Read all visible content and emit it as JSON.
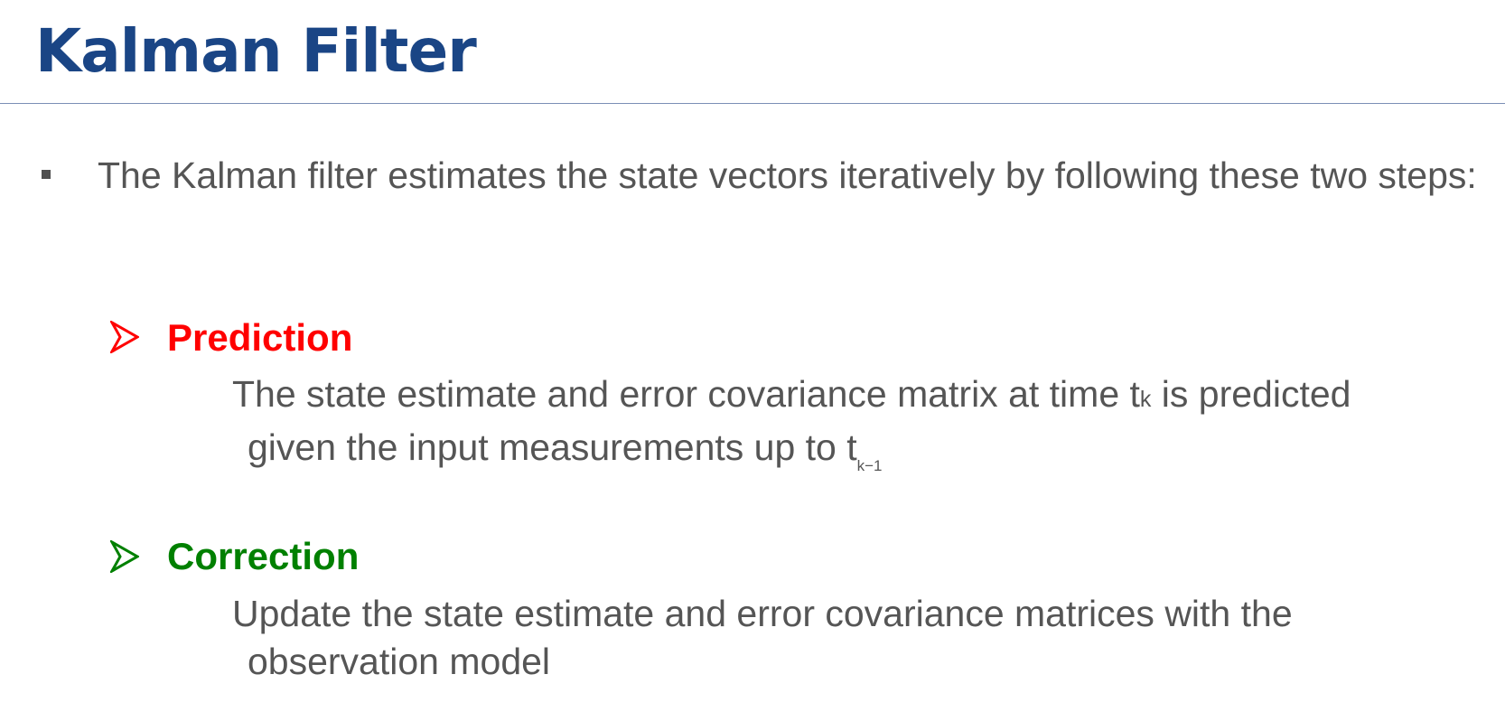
{
  "title": "Kalman Filter",
  "intro": "The Kalman filter estimates the state vectors iteratively by following these two steps:",
  "prediction": {
    "heading": "Prediction",
    "line1_pre": "The state estimate and error covariance matrix at time t",
    "line1_sub": "k",
    "line1_post": " is predicted",
    "line2_pre": "given the input measurements up to t",
    "line2_sub": "k−1"
  },
  "correction": {
    "heading": "Correction",
    "line1": "Update the state estimate and error covariance matrices with the",
    "line2": "observation model"
  },
  "colors": {
    "title": "#1a4585",
    "prediction": "#ff0000",
    "correction": "#008000",
    "body_text": "#555555"
  },
  "icons": [
    "square-bullet-icon",
    "arrowhead-bullet-icon"
  ]
}
